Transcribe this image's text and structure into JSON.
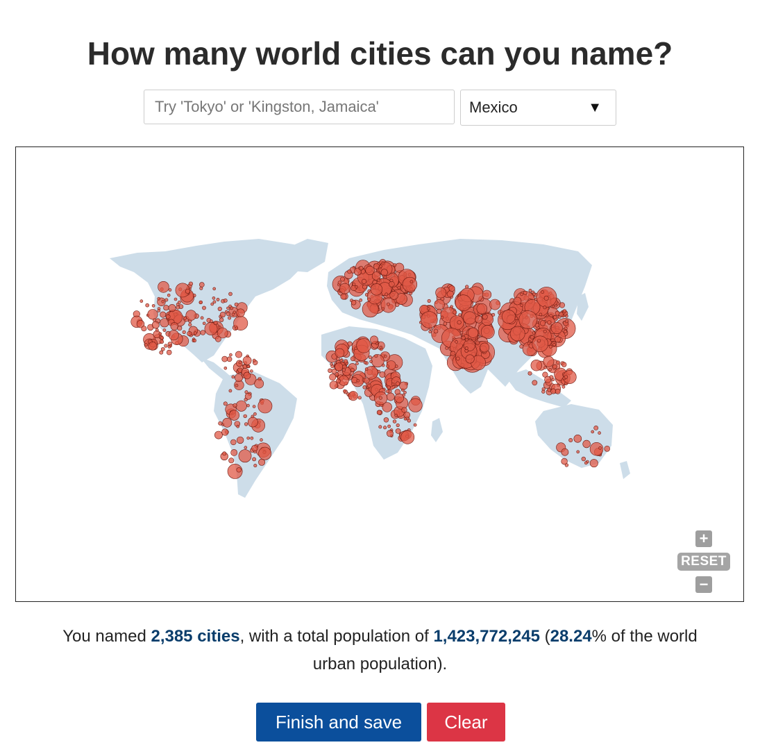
{
  "page": {
    "title": "How many world cities can you name?"
  },
  "search": {
    "placeholder": "Try 'Tokyo' or 'Kingston, Jamaica'",
    "value": ""
  },
  "country_select": {
    "selected": "Mexico",
    "caret": "▼"
  },
  "map": {
    "land_color": "#cddde9",
    "marker_color": "#e05a47",
    "marker_stroke": "#6b1a12",
    "zoom_in_label": "+",
    "reset_label": "RESET",
    "zoom_out_label": "−"
  },
  "summary": {
    "pre": "You named ",
    "cities": "2,385 cities",
    "mid": ", with a total population of ",
    "population": "1,423,772,245",
    "open_paren": " (",
    "percent": "28.24",
    "post": "% of the world",
    "line2": "urban population)."
  },
  "actions": {
    "finish_label": "Finish and save",
    "clear_label": "Clear"
  },
  "colors": {
    "accent_text": "#0a3d6b",
    "primary_button": "#0b4f9c",
    "danger_button": "#dc3545"
  }
}
